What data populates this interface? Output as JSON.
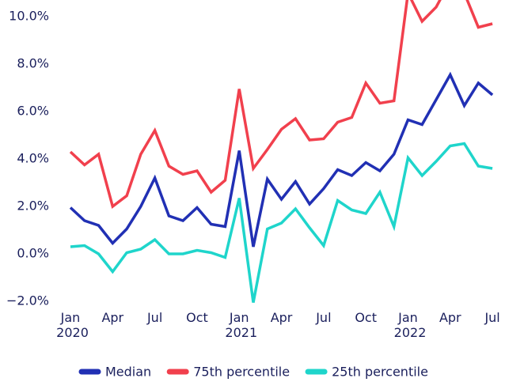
{
  "chart_data": {
    "type": "line",
    "categories": [
      "Jan 2020",
      null,
      null,
      "Apr",
      null,
      null,
      "Jul",
      null,
      null,
      "Oct",
      null,
      null,
      "Jan 2021",
      null,
      null,
      "Apr",
      null,
      null,
      "Jul",
      null,
      null,
      "Oct",
      null,
      null,
      "Jan 2022",
      null,
      null,
      "Apr",
      null,
      null,
      "Jul"
    ],
    "series": [
      {
        "name": "Median",
        "color": "#2130b4",
        "values": [
          1.95,
          1.4,
          1.2,
          0.45,
          1.05,
          2.0,
          3.2,
          1.6,
          1.4,
          1.95,
          1.25,
          1.15,
          4.35,
          0.3,
          3.15,
          2.3,
          3.05,
          2.1,
          2.75,
          3.55,
          3.3,
          3.85,
          3.5,
          4.2,
          5.65,
          5.45,
          6.5,
          7.55,
          6.25,
          7.2,
          6.7
        ]
      },
      {
        "name": "75th percentile",
        "color": "#f1404d",
        "values": [
          4.3,
          3.75,
          4.2,
          2.0,
          2.45,
          4.2,
          5.2,
          3.7,
          3.35,
          3.5,
          2.6,
          3.1,
          6.95,
          3.6,
          4.4,
          5.25,
          5.7,
          4.8,
          4.85,
          5.55,
          5.75,
          7.2,
          6.35,
          6.45,
          11.0,
          9.8,
          10.4,
          11.5,
          11.0,
          9.55,
          9.7
        ]
      },
      {
        "name": "25th percentile",
        "color": "#1fd5cb",
        "values": [
          0.3,
          0.35,
          0.0,
          -0.75,
          0.05,
          0.2,
          0.6,
          0.0,
          0.0,
          0.15,
          0.05,
          -0.15,
          2.35,
          -2.05,
          1.05,
          1.3,
          1.9,
          1.1,
          0.35,
          2.25,
          1.85,
          1.7,
          2.6,
          1.15,
          4.05,
          3.3,
          3.9,
          4.55,
          4.65,
          3.7,
          3.6
        ]
      }
    ],
    "ylim": [
      -2.0,
      10.7
    ],
    "yticks": [
      {
        "value": -2.0,
        "label": "−2.0%"
      },
      {
        "value": 0.0,
        "label": "0.0%"
      },
      {
        "value": 2.0,
        "label": "2.0%"
      },
      {
        "value": 4.0,
        "label": "4.0%"
      },
      {
        "value": 6.0,
        "label": "6.0%"
      },
      {
        "value": 8.0,
        "label": "8.0%"
      },
      {
        "value": 10.0,
        "label": "10.0%"
      }
    ],
    "grid": false,
    "legend": "bottom"
  }
}
